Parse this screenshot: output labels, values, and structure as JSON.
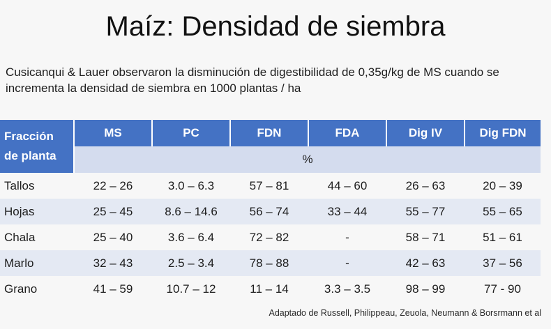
{
  "slide": {
    "title": "Maíz: Densidad de siembra",
    "intro": "Cusicanqui & Lauer observaron la disminución de digestibilidad de 0,35g/kg de MS cuando se incrementa la densidad de siembra en 1000 plantas / ha",
    "source": "Adaptado de Russell, Philippeau, Zeuola, Neumann & Borsrmann et al"
  },
  "table": {
    "corner_label_line1": "Fracción",
    "corner_label_line2": "de planta",
    "columns": [
      "MS",
      "PC",
      "FDN",
      "FDA",
      "Dig IV",
      "Dig FDN"
    ],
    "unit": "%",
    "rows": [
      {
        "label": "Tallos",
        "values": [
          "22 – 26",
          "3.0 – 6.3",
          "57 – 81",
          "44 – 60",
          "26 – 63",
          "20 – 39"
        ]
      },
      {
        "label": "Hojas",
        "values": [
          "25 – 45",
          "8.6 – 14.6",
          "56 – 74",
          "33 – 44",
          "55 – 77",
          "55 – 65"
        ]
      },
      {
        "label": "Chala",
        "values": [
          "25 – 40",
          "3.6 – 6.4",
          "72 – 82",
          "-",
          "58 – 71",
          "51 – 61"
        ]
      },
      {
        "label": "Marlo",
        "values": [
          "32 – 43",
          "2.5 – 3.4",
          "78 – 88",
          "-",
          "42 – 63",
          "37 – 56"
        ]
      },
      {
        "label": "Grano",
        "values": [
          "41 – 59",
          "10.7 – 12",
          "11 – 14",
          "3.3 – 3.5",
          "98 – 99",
          "77 - 90"
        ]
      }
    ]
  }
}
